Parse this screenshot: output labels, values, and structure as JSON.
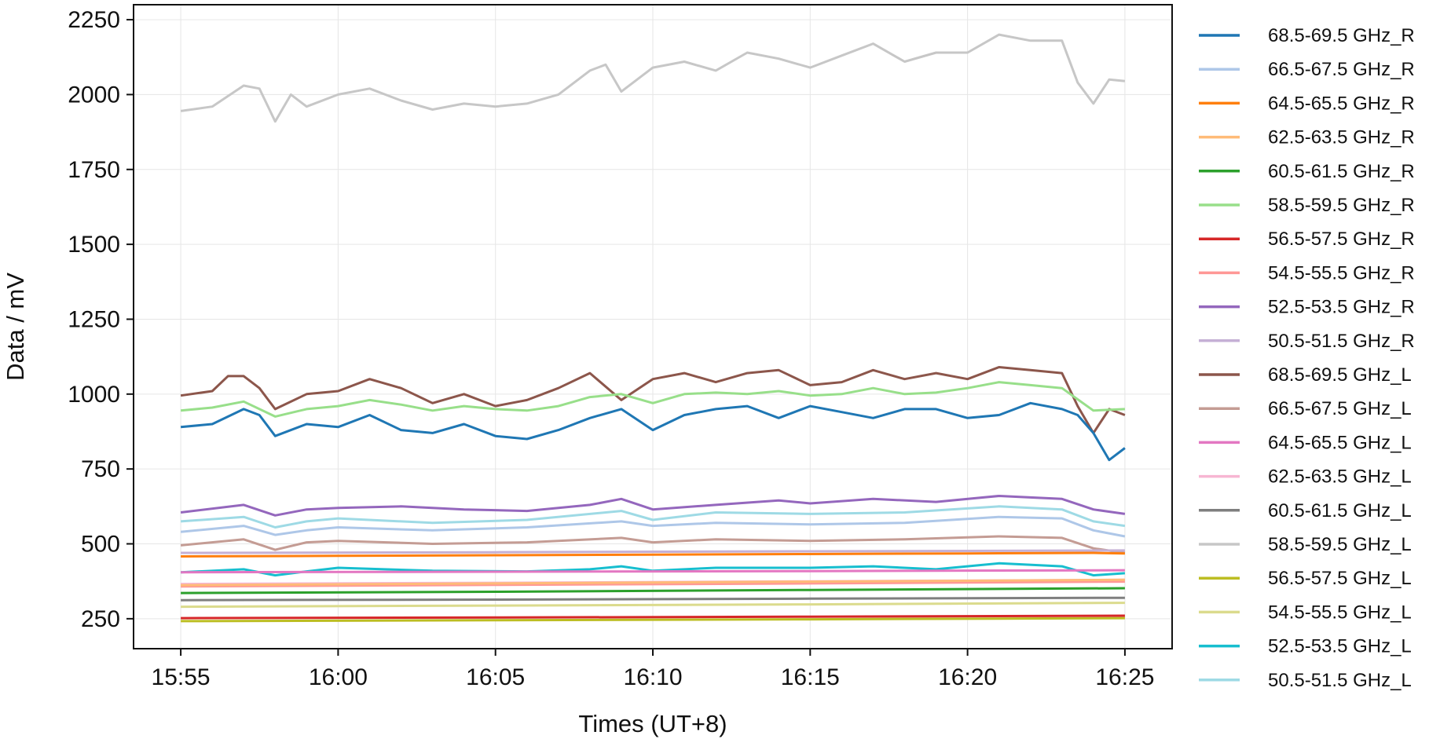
{
  "chart_data": {
    "type": "line",
    "title": "",
    "xlabel": "Times (UT+8)",
    "ylabel": "Data / mV",
    "x_ticks": [
      "15:55",
      "16:00",
      "16:05",
      "16:10",
      "16:15",
      "16:20",
      "16:25"
    ],
    "x_range": [
      "15:53:30",
      "16:26:30"
    ],
    "y_ticks": [
      250,
      500,
      750,
      1000,
      1250,
      1500,
      1750,
      2000,
      2250
    ],
    "ylim": [
      150,
      2300
    ],
    "grid": true,
    "legend_position": "outside-right",
    "series": [
      {
        "name": "68.5-69.5 GHz_R",
        "color": "#1f77b4",
        "times": [
          "15:55",
          "15:56",
          "15:57",
          "15:57:30",
          "15:58",
          "15:59",
          "16:00",
          "16:01",
          "16:02",
          "16:03",
          "16:04",
          "16:05",
          "16:06",
          "16:07",
          "16:08",
          "16:09",
          "16:10",
          "16:11",
          "16:12",
          "16:13",
          "16:14",
          "16:15",
          "16:16",
          "16:17",
          "16:18",
          "16:19",
          "16:20",
          "16:21",
          "16:22",
          "16:23",
          "16:23:30",
          "16:24",
          "16:24:30",
          "16:25"
        ],
        "values": [
          890,
          900,
          950,
          930,
          860,
          900,
          890,
          930,
          880,
          870,
          900,
          860,
          850,
          880,
          920,
          950,
          880,
          930,
          950,
          960,
          920,
          960,
          940,
          920,
          950,
          950,
          920,
          930,
          970,
          950,
          930,
          870,
          780,
          820
        ]
      },
      {
        "name": "66.5-67.5 GHz_R",
        "color": "#aec7e8",
        "times": [
          "15:55",
          "15:57",
          "15:58",
          "15:59",
          "16:00",
          "16:03",
          "16:06",
          "16:09",
          "16:10",
          "16:12",
          "16:15",
          "16:18",
          "16:21",
          "16:23",
          "16:24",
          "16:25"
        ],
        "values": [
          540,
          560,
          530,
          545,
          555,
          545,
          555,
          575,
          560,
          570,
          565,
          570,
          590,
          585,
          545,
          525
        ]
      },
      {
        "name": "64.5-65.5 GHz_R",
        "color": "#ff7f0e",
        "times": [
          "15:55",
          "16:00",
          "16:05",
          "16:10",
          "16:15",
          "16:20",
          "16:24",
          "16:25"
        ],
        "values": [
          458,
          460,
          462,
          464,
          466,
          468,
          470,
          468
        ]
      },
      {
        "name": "62.5-63.5 GHz_R",
        "color": "#ffbb78",
        "times": [
          "15:55",
          "16:05",
          "16:15",
          "16:25"
        ],
        "values": [
          362,
          368,
          374,
          380
        ]
      },
      {
        "name": "60.5-61.5 GHz_R",
        "color": "#2ca02c",
        "times": [
          "15:55",
          "16:05",
          "16:15",
          "16:25"
        ],
        "values": [
          336,
          340,
          346,
          352
        ]
      },
      {
        "name": "58.5-59.5 GHz_R",
        "color": "#98df8a",
        "times": [
          "15:55",
          "15:56",
          "15:57",
          "15:58",
          "15:59",
          "16:00",
          "16:01",
          "16:02",
          "16:03",
          "16:04",
          "16:05",
          "16:06",
          "16:07",
          "16:08",
          "16:09",
          "16:10",
          "16:11",
          "16:12",
          "16:13",
          "16:14",
          "16:15",
          "16:16",
          "16:17",
          "16:18",
          "16:19",
          "16:20",
          "16:21",
          "16:22",
          "16:23",
          "16:24",
          "16:25"
        ],
        "values": [
          945,
          955,
          975,
          925,
          950,
          960,
          980,
          965,
          945,
          960,
          950,
          945,
          960,
          990,
          1000,
          970,
          1000,
          1005,
          1000,
          1010,
          995,
          1000,
          1020,
          1000,
          1005,
          1020,
          1040,
          1030,
          1020,
          945,
          950
        ]
      },
      {
        "name": "56.5-57.5 GHz_R",
        "color": "#d62728",
        "times": [
          "15:55",
          "16:05",
          "16:15",
          "16:25"
        ],
        "values": [
          252,
          254,
          257,
          260
        ]
      },
      {
        "name": "54.5-55.5 GHz_R",
        "color": "#ff9896",
        "times": [
          "15:55",
          "16:05",
          "16:15",
          "16:25"
        ],
        "values": [
          358,
          363,
          368,
          374
        ]
      },
      {
        "name": "52.5-53.5 GHz_R",
        "color": "#9467bd",
        "times": [
          "15:55",
          "15:57",
          "15:58",
          "15:59",
          "16:00",
          "16:02",
          "16:04",
          "16:06",
          "16:08",
          "16:09",
          "16:10",
          "16:12",
          "16:14",
          "16:15",
          "16:17",
          "16:19",
          "16:21",
          "16:23",
          "16:24",
          "16:25"
        ],
        "values": [
          605,
          630,
          595,
          615,
          620,
          625,
          615,
          610,
          630,
          650,
          615,
          630,
          645,
          635,
          650,
          640,
          660,
          650,
          615,
          600
        ]
      },
      {
        "name": "50.5-51.5 GHz_R",
        "color": "#c5b0d5",
        "times": [
          "15:55",
          "16:05",
          "16:15",
          "16:25"
        ],
        "values": [
          470,
          472,
          475,
          478
        ]
      },
      {
        "name": "68.5-69.5 GHz_L",
        "color": "#8c564b",
        "times": [
          "15:55",
          "15:56",
          "15:56:30",
          "15:57",
          "15:57:30",
          "15:58",
          "15:59",
          "16:00",
          "16:01",
          "16:02",
          "16:03",
          "16:04",
          "16:05",
          "16:06",
          "16:07",
          "16:08",
          "16:09",
          "16:10",
          "16:11",
          "16:12",
          "16:13",
          "16:14",
          "16:15",
          "16:16",
          "16:17",
          "16:18",
          "16:19",
          "16:20",
          "16:21",
          "16:22",
          "16:23",
          "16:23:30",
          "16:24",
          "16:24:30",
          "16:25"
        ],
        "values": [
          995,
          1010,
          1060,
          1060,
          1020,
          950,
          1000,
          1010,
          1050,
          1020,
          970,
          1000,
          960,
          980,
          1020,
          1070,
          980,
          1050,
          1070,
          1040,
          1070,
          1080,
          1030,
          1040,
          1080,
          1050,
          1070,
          1050,
          1090,
          1080,
          1070,
          960,
          870,
          950,
          930
        ]
      },
      {
        "name": "66.5-67.5 GHz_L",
        "color": "#c49c94",
        "times": [
          "15:55",
          "15:57",
          "15:58",
          "15:59",
          "16:00",
          "16:03",
          "16:06",
          "16:09",
          "16:10",
          "16:12",
          "16:15",
          "16:18",
          "16:21",
          "16:23",
          "16:24",
          "16:25"
        ],
        "values": [
          495,
          515,
          480,
          505,
          510,
          500,
          505,
          520,
          505,
          515,
          510,
          515,
          525,
          520,
          485,
          470
        ]
      },
      {
        "name": "64.5-65.5 GHz_L",
        "color": "#e377c2",
        "times": [
          "15:55",
          "16:05",
          "16:15",
          "16:25"
        ],
        "values": [
          405,
          407,
          409,
          412
        ]
      },
      {
        "name": "62.5-63.5 GHz_L",
        "color": "#f7b6d2",
        "times": [
          "15:55",
          "16:05",
          "16:15",
          "16:25"
        ],
        "values": [
          366,
          370,
          375,
          380
        ]
      },
      {
        "name": "60.5-61.5 GHz_L",
        "color": "#7f7f7f",
        "times": [
          "15:55",
          "16:05",
          "16:15",
          "16:25"
        ],
        "values": [
          312,
          314,
          317,
          320
        ]
      },
      {
        "name": "58.5-59.5 GHz_L",
        "color": "#c7c7c7",
        "times": [
          "15:55",
          "15:56",
          "15:57",
          "15:57:30",
          "15:58",
          "15:58:30",
          "15:59",
          "16:00",
          "16:01",
          "16:02",
          "16:03",
          "16:04",
          "16:05",
          "16:06",
          "16:07",
          "16:08",
          "16:08:30",
          "16:09",
          "16:10",
          "16:11",
          "16:12",
          "16:13",
          "16:14",
          "16:15",
          "16:16",
          "16:17",
          "16:18",
          "16:19",
          "16:20",
          "16:21",
          "16:22",
          "16:23",
          "16:23:30",
          "16:24",
          "16:24:30",
          "16:25"
        ],
        "values": [
          1945,
          1960,
          2030,
          2020,
          1910,
          2000,
          1960,
          2000,
          2020,
          1980,
          1950,
          1970,
          1960,
          1970,
          2000,
          2080,
          2100,
          2010,
          2090,
          2110,
          2080,
          2140,
          2120,
          2090,
          2130,
          2170,
          2110,
          2140,
          2140,
          2200,
          2180,
          2180,
          2040,
          1970,
          2050,
          2045
        ]
      },
      {
        "name": "56.5-57.5 GHz_L",
        "color": "#bcbd22",
        "times": [
          "15:55",
          "16:05",
          "16:15",
          "16:25"
        ],
        "values": [
          242,
          245,
          248,
          252
        ]
      },
      {
        "name": "54.5-55.5 GHz_L",
        "color": "#dbdb8d",
        "times": [
          "15:55",
          "16:05",
          "16:15",
          "16:25"
        ],
        "values": [
          290,
          294,
          298,
          303
        ]
      },
      {
        "name": "52.5-53.5 GHz_L",
        "color": "#17becf",
        "times": [
          "15:55",
          "15:57",
          "15:58",
          "15:59",
          "16:00",
          "16:03",
          "16:06",
          "16:08",
          "16:09",
          "16:10",
          "16:12",
          "16:15",
          "16:17",
          "16:19",
          "16:21",
          "16:23",
          "16:24",
          "16:25"
        ],
        "values": [
          405,
          415,
          395,
          408,
          420,
          410,
          408,
          415,
          425,
          410,
          420,
          420,
          425,
          415,
          435,
          425,
          395,
          402
        ]
      },
      {
        "name": "50.5-51.5 GHz_L",
        "color": "#9edae5",
        "times": [
          "15:55",
          "15:57",
          "15:58",
          "15:59",
          "16:00",
          "16:03",
          "16:06",
          "16:09",
          "16:10",
          "16:12",
          "16:15",
          "16:18",
          "16:21",
          "16:23",
          "16:24",
          "16:25"
        ],
        "values": [
          575,
          590,
          555,
          575,
          585,
          570,
          580,
          610,
          580,
          605,
          600,
          605,
          625,
          615,
          575,
          560
        ]
      }
    ]
  }
}
